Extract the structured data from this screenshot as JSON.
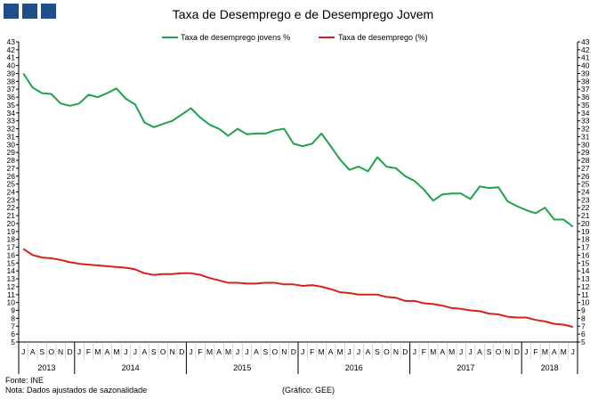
{
  "header": {
    "title": "Taxa de Desemprego e de Desemprego Jovem"
  },
  "logo": {
    "color": "#1f4e8c",
    "squares": 3
  },
  "footer": {
    "source": "Fonte: INE",
    "note": "Nota: Dados ajustados de sazonalidade",
    "credit": "(Gráfico: GEE)"
  },
  "chart_data": {
    "type": "line",
    "title": "Taxa de Desemprego e de Desemprego Jovem",
    "xlabel": "",
    "ylabel": "",
    "ylim": [
      5,
      43
    ],
    "y_ticks_step": 1,
    "secondary_y_axis": true,
    "grid": false,
    "legend_position": "top-center",
    "month_labels": [
      "J",
      "A",
      "S",
      "O",
      "N",
      "D",
      "J",
      "F",
      "M",
      "A",
      "M",
      "J",
      "J",
      "A",
      "S",
      "O",
      "N",
      "D",
      "J",
      "F",
      "M",
      "A",
      "M",
      "J",
      "J",
      "A",
      "S",
      "O",
      "N",
      "D",
      "J",
      "F",
      "M",
      "A",
      "M",
      "J",
      "J",
      "A",
      "S",
      "O",
      "N",
      "D",
      "J",
      "F",
      "M",
      "A",
      "M",
      "J",
      "J",
      "A",
      "S",
      "O",
      "N",
      "D",
      "J",
      "F",
      "M",
      "A",
      "M",
      "J"
    ],
    "year_groups": [
      {
        "label": "2013",
        "count": 6
      },
      {
        "label": "2014",
        "count": 12
      },
      {
        "label": "2015",
        "count": 12
      },
      {
        "label": "2016",
        "count": 12
      },
      {
        "label": "2017",
        "count": 12
      },
      {
        "label": "2018",
        "count": 6
      }
    ],
    "series": [
      {
        "name": "Taxa de desemprego jovens %",
        "color": "#1fa34a",
        "values": [
          39.0,
          37.2,
          36.5,
          36.4,
          35.2,
          34.9,
          35.2,
          36.3,
          36.0,
          36.5,
          37.1,
          35.8,
          35.1,
          32.8,
          32.2,
          32.6,
          33.0,
          33.8,
          34.6,
          33.4,
          32.5,
          32.0,
          31.1,
          32.0,
          31.3,
          31.4,
          31.4,
          31.8,
          32.0,
          30.1,
          29.8,
          30.1,
          31.4,
          29.8,
          28.1,
          26.8,
          27.2,
          26.6,
          28.4,
          27.2,
          27.0,
          26.0,
          25.4,
          24.3,
          22.9,
          23.7,
          23.8,
          23.8,
          23.1,
          24.7,
          24.5,
          24.6,
          22.8,
          22.2,
          21.7,
          21.3,
          22.0,
          20.5,
          20.5,
          19.6
        ]
      },
      {
        "name": "Taxa de desemprego (%)",
        "color": "#d9201e",
        "values": [
          16.8,
          16.0,
          15.7,
          15.6,
          15.4,
          15.1,
          14.9,
          14.8,
          14.7,
          14.6,
          14.5,
          14.4,
          14.2,
          13.7,
          13.5,
          13.6,
          13.6,
          13.7,
          13.7,
          13.5,
          13.1,
          12.8,
          12.5,
          12.5,
          12.4,
          12.4,
          12.5,
          12.5,
          12.3,
          12.3,
          12.1,
          12.2,
          12.0,
          11.7,
          11.3,
          11.2,
          11.0,
          11.0,
          11.0,
          10.7,
          10.6,
          10.2,
          10.2,
          9.9,
          9.8,
          9.6,
          9.3,
          9.2,
          9.0,
          8.9,
          8.6,
          8.5,
          8.2,
          8.1,
          8.1,
          7.8,
          7.6,
          7.3,
          7.2,
          6.9
        ]
      }
    ]
  }
}
